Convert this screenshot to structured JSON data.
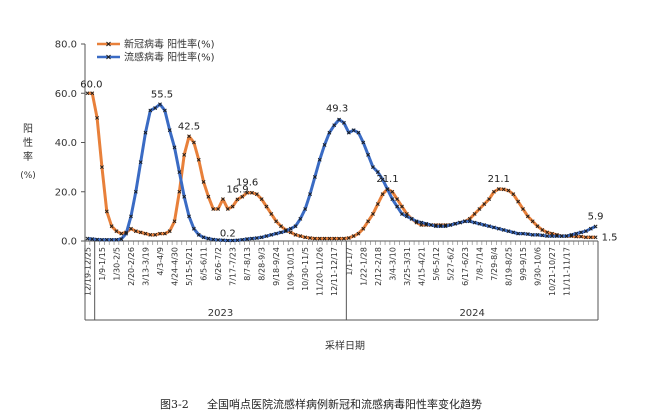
{
  "chart_data": {
    "type": "line",
    "ylabel": "阳性率",
    "yunit": "(%)",
    "xlabel": "采样日期",
    "caption_number": "图3-2",
    "caption_text": "全国哨点医院流感样病例新冠和流感病毒阳性率变化趋势",
    "ylim": [
      0,
      80
    ],
    "yticks": [
      "0.0",
      "20.0",
      "40.0",
      "60.0",
      "80.0"
    ],
    "legend_position": "top-left",
    "years": [
      {
        "label": "2023",
        "start_index": 2,
        "end_index": 54
      },
      {
        "label": "2024",
        "start_index": 54,
        "end_index": 106
      }
    ],
    "category_labels": [
      "12/19-12/25",
      "1/9-1/15",
      "1/30-2/5",
      "2/20-2/26",
      "3/13-3/19",
      "4/3-4/9",
      "4/24-4/30",
      "5/15-5/21",
      "6/5-6/11",
      "6/26-7/2",
      "7/17-7/23",
      "8/7-8/13",
      "8/28-9/3",
      "9/18-9/24",
      "10/9-10/15",
      "10/30-11/5",
      "11/20-11/26",
      "12/11-12/17",
      "1/1-1/7",
      "1/22-1/28",
      "2/12-2/18",
      "3/4-3/10",
      "3/25-3/31",
      "4/15-4/21",
      "5/6-5/12",
      "5/27-6/2",
      "6/17-6/23",
      "7/8-7/14",
      "7/29-8/4",
      "8/19-8/25",
      "9/9-9/15",
      "9/30-10/6",
      "10/21-10/27",
      "11/11-11/17"
    ],
    "series": [
      {
        "name": "新冠病毒 阳性率(%)",
        "color": "#E8803A",
        "marker": "x",
        "values": [
          60,
          60,
          50,
          30,
          12,
          6,
          4,
          3,
          3.5,
          5,
          4,
          3.5,
          3,
          2.5,
          2.5,
          3,
          3,
          4,
          8,
          20,
          35,
          42.5,
          40,
          33,
          24,
          18,
          13,
          13,
          17,
          13,
          14,
          16.9,
          18,
          19.6,
          19.6,
          19,
          17,
          14,
          11,
          8,
          6,
          4.5,
          3.5,
          2.5,
          2,
          1.5,
          1.2,
          1,
          1,
          1,
          1,
          1,
          1,
          1,
          1.2,
          2,
          3,
          5,
          8,
          11,
          15,
          19,
          21.1,
          20,
          17,
          14,
          11,
          9,
          7.5,
          6.5,
          6.5,
          6.5,
          6.5,
          6.5,
          6.5,
          6.5,
          7,
          7.5,
          8,
          9,
          11,
          13,
          15,
          17,
          20,
          21.1,
          21,
          20.5,
          19,
          16,
          13,
          10,
          8,
          6,
          4.5,
          3.5,
          3,
          2.5,
          2,
          2,
          2,
          1.8,
          1.8,
          1.5,
          1.5,
          1.5
        ]
      },
      {
        "name": "流感病毒 阳性率(%)",
        "color": "#3A6BC4",
        "marker": "x",
        "values": [
          1,
          0.8,
          0.6,
          0.5,
          0.5,
          0.5,
          0.5,
          0.8,
          3,
          10,
          20,
          32,
          44,
          53,
          54,
          55.5,
          53,
          45,
          38,
          28,
          18,
          10,
          5,
          2.5,
          1.5,
          1,
          0.6,
          0.4,
          0.3,
          0.2,
          0.2,
          0.3,
          0.5,
          0.8,
          1,
          1.2,
          1.5,
          2,
          2.5,
          3,
          3.5,
          4,
          5,
          6,
          9,
          13,
          19,
          26,
          33,
          39,
          44,
          47,
          49.3,
          48,
          44,
          45,
          44,
          40,
          35,
          30,
          28,
          25,
          21,
          17,
          14,
          11,
          10,
          9,
          8,
          7.5,
          7,
          6.5,
          6,
          6,
          6,
          6.5,
          7,
          7.5,
          8,
          8,
          7.5,
          7,
          6.5,
          6,
          5.5,
          5,
          4.5,
          4,
          3.5,
          3,
          3,
          2.8,
          2.5,
          2.5,
          2.3,
          2,
          2,
          2,
          2,
          2,
          2.5,
          3,
          3.5,
          4,
          5,
          5.9
        ]
      }
    ],
    "annotations": [
      {
        "series": 0,
        "index": 0,
        "text": "60.0"
      },
      {
        "series": 1,
        "index": 15,
        "text": "55.5"
      },
      {
        "series": 0,
        "index": 21,
        "text": "42.5"
      },
      {
        "series": 0,
        "index": 31,
        "text": "16.9"
      },
      {
        "series": 0,
        "index": 33,
        "text": "19.6"
      },
      {
        "series": 1,
        "index": 29,
        "text": "0.2"
      },
      {
        "series": 1,
        "index": 52,
        "text": "49.3"
      },
      {
        "series": 0,
        "index": 62,
        "text": "21.1"
      },
      {
        "series": 0,
        "index": 85,
        "text": "21.1"
      },
      {
        "series": 1,
        "index": 105,
        "text": "5.9"
      },
      {
        "series": 0,
        "index": 105,
        "text": "1.5"
      }
    ]
  }
}
